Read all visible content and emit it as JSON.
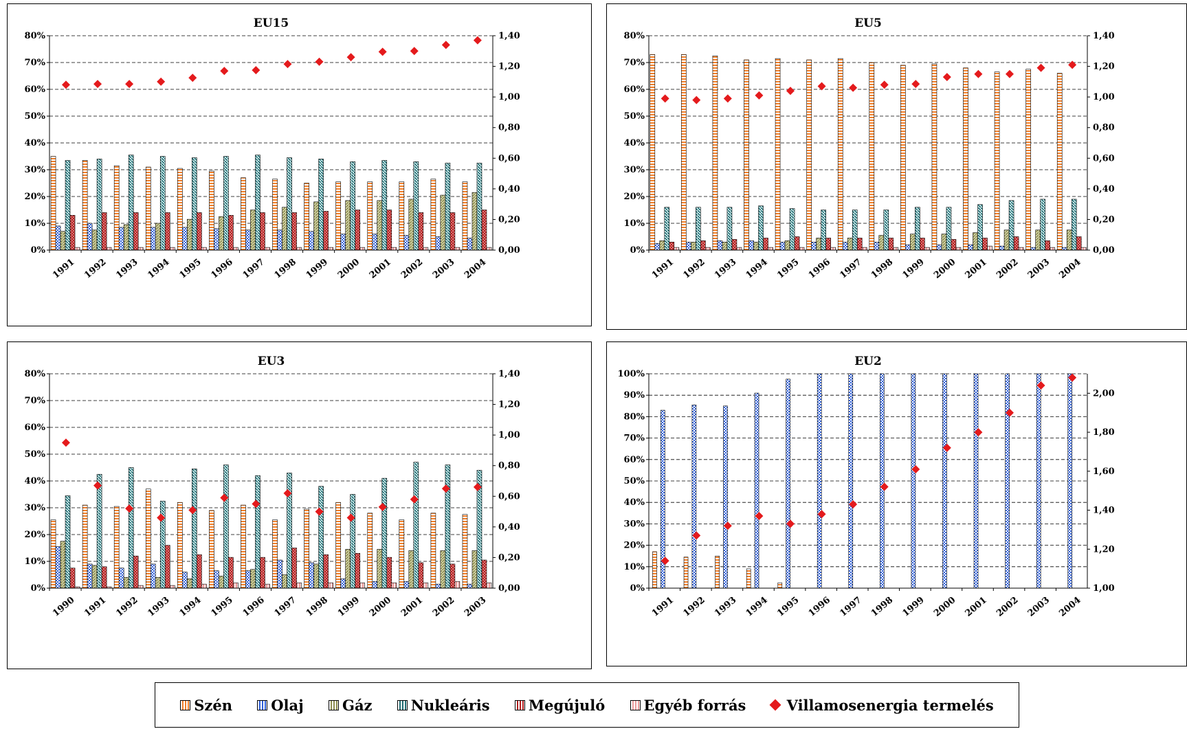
{
  "colors": {
    "coal": "#f07f2a",
    "oil": "#2f5fd8",
    "gas": "#8c8c4e",
    "nuclear": "#1f6a70",
    "renewable": "#b31c1c",
    "other": "#e89a9a",
    "electricity": "#e41a1c"
  },
  "legend": {
    "items": [
      {
        "key": "coal",
        "label": "Szén"
      },
      {
        "key": "oil",
        "label": "Olaj"
      },
      {
        "key": "gas",
        "label": "Gáz"
      },
      {
        "key": "nuclear",
        "label": "Nukleáris"
      },
      {
        "key": "renewable",
        "label": "Megújuló"
      },
      {
        "key": "other",
        "label": "Egyéb forrás"
      }
    ],
    "line_label": "Villamosenergia termelés"
  },
  "chart_data": [
    {
      "type": "bar",
      "title": "EU15",
      "categories": [
        "1991",
        "1992",
        "1993",
        "1994",
        "1995",
        "1996",
        "1997",
        "1998",
        "1999",
        "2000",
        "2001",
        "2002",
        "2003",
        "2004"
      ],
      "ylim": [
        0,
        80
      ],
      "y_ticks": [
        0,
        10,
        20,
        30,
        40,
        50,
        60,
        70,
        80
      ],
      "y2lim": [
        0,
        1.4
      ],
      "y2_ticks": [
        0,
        0.2,
        0.4,
        0.6,
        0.8,
        1.0,
        1.2,
        1.4
      ],
      "y2_tick_labels": [
        "0,00",
        "0,20",
        "0,40",
        "0,60",
        "0,80",
        "1,00",
        "1,20",
        "1,40"
      ],
      "grid": true,
      "series": [
        {
          "key": "coal",
          "values": [
            35,
            33.5,
            31.5,
            31,
            30.5,
            29.5,
            27,
            26.5,
            25,
            25.5,
            25.5,
            25.5,
            26.5,
            25.5
          ]
        },
        {
          "key": "oil",
          "values": [
            9,
            10,
            8.5,
            8.5,
            8.5,
            8,
            7.5,
            7.5,
            7,
            6,
            6,
            5.5,
            5,
            4.5
          ]
        },
        {
          "key": "gas",
          "values": [
            7,
            7.5,
            9.5,
            10,
            11.5,
            12.5,
            15,
            16,
            18,
            18.5,
            18.5,
            19,
            20.5,
            21.5
          ]
        },
        {
          "key": "nuclear",
          "values": [
            33.5,
            34,
            35.5,
            35,
            34.5,
            35,
            35.5,
            34.5,
            34,
            33,
            33.5,
            33,
            32.5,
            32.5
          ]
        },
        {
          "key": "renewable",
          "values": [
            13,
            14,
            14,
            14,
            14,
            13,
            14,
            14,
            14.5,
            15,
            15,
            14,
            14,
            15
          ]
        },
        {
          "key": "other",
          "values": [
            1,
            1,
            1,
            1,
            1,
            1,
            1,
            1,
            1,
            1,
            1,
            1,
            1,
            1
          ]
        },
        {
          "key": "electricity",
          "axis": "y2",
          "values": [
            1.08,
            1.085,
            1.085,
            1.1,
            1.125,
            1.17,
            1.175,
            1.215,
            1.23,
            1.26,
            1.295,
            1.3,
            1.34,
            1.37
          ]
        }
      ]
    },
    {
      "type": "bar",
      "title": "EU5",
      "categories": [
        "1991",
        "1992",
        "1993",
        "1994",
        "1995",
        "1996",
        "1997",
        "1998",
        "1999",
        "2000",
        "2001",
        "2002",
        "2003",
        "2004"
      ],
      "ylim": [
        0,
        80
      ],
      "y_ticks": [
        0,
        10,
        20,
        30,
        40,
        50,
        60,
        70,
        80
      ],
      "y2lim": [
        0,
        1.4
      ],
      "y2_ticks": [
        0,
        0.2,
        0.4,
        0.6,
        0.8,
        1.0,
        1.2,
        1.4
      ],
      "y2_tick_labels": [
        "0,00",
        "0,20",
        "0,40",
        "0,60",
        "0,80",
        "1,00",
        "1,20",
        "1,40"
      ],
      "grid": true,
      "series": [
        {
          "key": "coal",
          "values": [
            73,
            73,
            72.5,
            71,
            71.5,
            71,
            71.5,
            70,
            69,
            69.5,
            68,
            66.5,
            67.5,
            66
          ]
        },
        {
          "key": "oil",
          "values": [
            2.5,
            3,
            3.5,
            3.5,
            3,
            3,
            3,
            3,
            2,
            2,
            2,
            1.5,
            1,
            1
          ]
        },
        {
          "key": "gas",
          "values": [
            3.5,
            3,
            3,
            3,
            3.5,
            4.5,
            4.5,
            5.5,
            6,
            6,
            6.5,
            7.5,
            7.5,
            7.5
          ]
        },
        {
          "key": "nuclear",
          "values": [
            16,
            16,
            16,
            16.5,
            15.5,
            15,
            15,
            15,
            16,
            16,
            17,
            18.5,
            19,
            19
          ]
        },
        {
          "key": "renewable",
          "values": [
            3,
            3.5,
            4,
            4.5,
            5,
            4.5,
            4.5,
            4.5,
            4.5,
            4,
            4.5,
            5,
            3.5,
            5
          ]
        },
        {
          "key": "other",
          "values": [
            1,
            1,
            1,
            1,
            1,
            1,
            1,
            1,
            1,
            1,
            1.5,
            1,
            1,
            1
          ]
        },
        {
          "key": "electricity",
          "axis": "y2",
          "values": [
            0.99,
            0.98,
            0.99,
            1.01,
            1.04,
            1.07,
            1.06,
            1.08,
            1.085,
            1.13,
            1.15,
            1.15,
            1.19,
            1.21
          ]
        }
      ]
    },
    {
      "type": "bar",
      "title": "EU3",
      "categories": [
        "1990",
        "1991",
        "1992",
        "1993",
        "1994",
        "1995",
        "1996",
        "1997",
        "1998",
        "1999",
        "2000",
        "2001",
        "2002",
        "2003"
      ],
      "ylim": [
        0,
        80
      ],
      "y_ticks": [
        0,
        10,
        20,
        30,
        40,
        50,
        60,
        70,
        80
      ],
      "y2lim": [
        0,
        1.4
      ],
      "y2_ticks": [
        0,
        0.2,
        0.4,
        0.6,
        0.8,
        1.0,
        1.2,
        1.4
      ],
      "y2_tick_labels": [
        "0,00",
        "0,20",
        "0,40",
        "0,60",
        "0,80",
        "1,00",
        "1,20",
        "1,40"
      ],
      "grid": true,
      "series": [
        {
          "key": "coal",
          "values": [
            25.5,
            31,
            30.5,
            37,
            32,
            29,
            31,
            25.5,
            29.5,
            32,
            28,
            25.5,
            28,
            27.5
          ]
        },
        {
          "key": "oil",
          "values": [
            15.5,
            9,
            7.5,
            9,
            6,
            6.5,
            6.5,
            10.5,
            9.5,
            3.5,
            2.5,
            2.5,
            1.5,
            1.5
          ]
        },
        {
          "key": "gas",
          "values": [
            17.5,
            8.5,
            4,
            4,
            3.5,
            4.5,
            7,
            5,
            9,
            14.5,
            14.5,
            14,
            14,
            14
          ]
        },
        {
          "key": "nuclear",
          "values": [
            34.5,
            42.5,
            45,
            32.5,
            44.5,
            46,
            42,
            43,
            38,
            35,
            41,
            47,
            46,
            44
          ]
        },
        {
          "key": "renewable",
          "values": [
            7.5,
            8,
            12,
            16,
            12.5,
            11.5,
            11.5,
            15,
            12.5,
            13,
            11.5,
            9.5,
            9,
            10.5
          ]
        },
        {
          "key": "other",
          "values": [
            0.5,
            0.5,
            1,
            1,
            1.5,
            2,
            1.5,
            2,
            2,
            2,
            2,
            2,
            2.5,
            2
          ]
        },
        {
          "key": "electricity",
          "axis": "y2",
          "values": [
            0.95,
            0.67,
            0.52,
            0.46,
            0.51,
            0.59,
            0.55,
            0.62,
            0.5,
            0.46,
            0.53,
            0.58,
            0.65,
            0.66
          ]
        }
      ]
    },
    {
      "type": "bar",
      "title": "EU2",
      "categories": [
        "1991",
        "1992",
        "1993",
        "1994",
        "1995",
        "1996",
        "1997",
        "1998",
        "1999",
        "2000",
        "2001",
        "2002",
        "2003",
        "2004"
      ],
      "ylim": [
        0,
        100
      ],
      "y_ticks": [
        0,
        10,
        20,
        30,
        40,
        50,
        60,
        70,
        80,
        90,
        100
      ],
      "y2lim": [
        1.0,
        2.1
      ],
      "y2_ticks": [
        1.0,
        1.2,
        1.4,
        1.6,
        1.8,
        2.0
      ],
      "y2_tick_labels": [
        "1,00",
        "1,20",
        "1,40",
        "1,60",
        "1,80",
        "2,00"
      ],
      "grid": true,
      "series": [
        {
          "key": "coal",
          "values": [
            17,
            14.5,
            15,
            9,
            2.5,
            0,
            0,
            0,
            0,
            0,
            0,
            0,
            0,
            0
          ]
        },
        {
          "key": "oil",
          "values": [
            83,
            85.5,
            85,
            91,
            97.5,
            100,
            100,
            100,
            100,
            100,
            100,
            100,
            100,
            100
          ]
        },
        {
          "key": "electricity",
          "axis": "y2",
          "values": [
            1.14,
            1.27,
            1.32,
            1.37,
            1.33,
            1.38,
            1.43,
            1.52,
            1.61,
            1.72,
            1.8,
            1.9,
            2.04,
            2.08
          ]
        }
      ]
    }
  ]
}
